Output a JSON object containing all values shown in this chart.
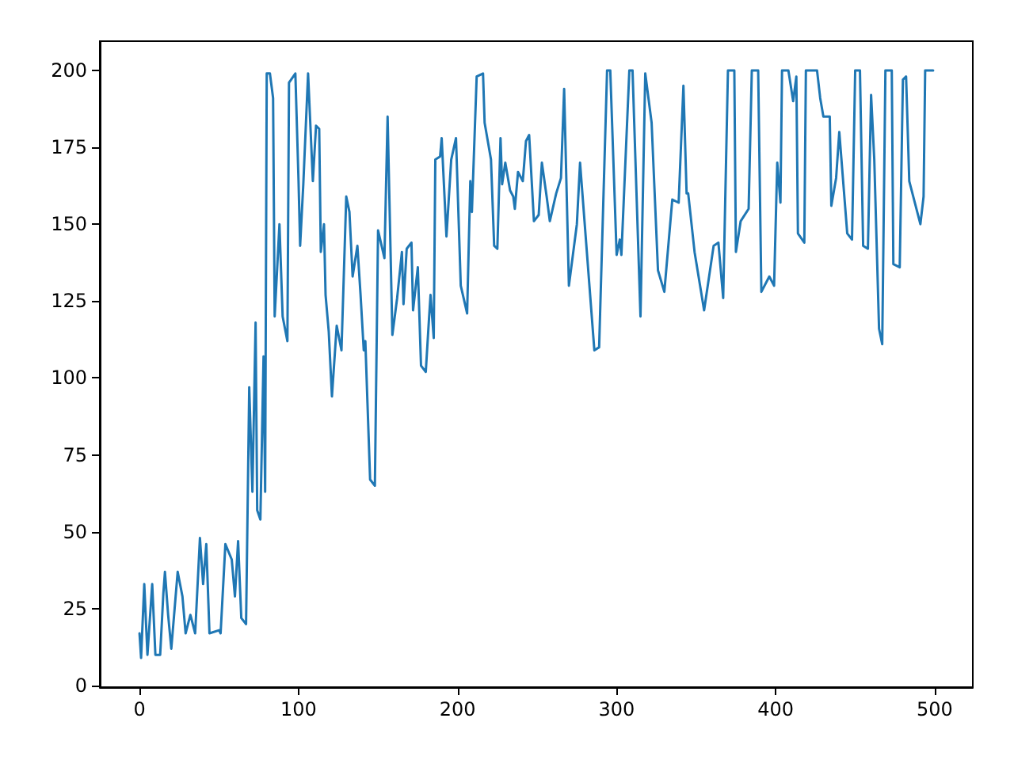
{
  "chart_data": {
    "type": "line",
    "xlim": [
      -24.95,
      523.95
    ],
    "ylim": [
      -0.5,
      209.5
    ],
    "xticks": [
      0,
      100,
      200,
      300,
      400,
      500
    ],
    "yticks": [
      0,
      25,
      50,
      75,
      100,
      125,
      150,
      175,
      200
    ],
    "grid": false,
    "marker": "none",
    "line_style": "solid",
    "series": [
      {
        "color": "#1f77b4",
        "x": [
          0,
          1,
          3,
          5,
          8,
          10,
          13,
          15,
          16,
          18,
          20,
          24,
          27,
          29,
          32,
          35,
          38,
          40,
          42,
          44,
          50,
          51,
          54,
          58,
          60,
          62,
          64,
          67,
          69,
          71,
          73,
          74,
          76,
          78,
          79,
          80,
          82,
          84,
          85,
          88,
          90,
          93,
          94,
          98,
          100,
          101,
          103,
          106,
          109,
          111,
          113,
          114,
          116,
          117,
          119,
          121,
          124,
          127,
          130,
          132,
          134,
          137,
          139,
          141,
          142,
          145,
          148,
          150,
          154,
          156,
          159,
          162,
          165,
          166,
          168,
          171,
          172,
          175,
          177,
          180,
          182,
          183,
          185,
          186,
          189,
          190,
          193,
          196,
          199,
          202,
          206,
          208,
          209,
          212,
          216,
          217,
          221,
          223,
          225,
          227,
          228,
          230,
          233,
          235,
          236,
          238,
          241,
          243,
          245,
          248,
          251,
          253,
          256,
          258,
          262,
          265,
          267,
          270,
          275,
          277,
          286,
          289,
          294,
          296,
          300,
          302,
          303,
          308,
          310,
          315,
          318,
          322,
          326,
          330,
          335,
          339,
          342,
          344,
          345,
          349,
          355,
          361,
          364,
          367,
          370,
          374,
          375,
          378,
          383,
          385,
          389,
          391,
          396,
          399,
          401,
          403,
          404,
          408,
          411,
          413,
          414,
          418,
          419,
          426,
          428,
          430,
          434,
          435,
          438,
          440,
          445,
          448,
          450,
          453,
          455,
          458,
          460,
          462,
          465,
          467,
          469,
          473,
          474,
          478,
          480,
          482,
          484,
          488,
          491,
          493,
          494,
          499
        ],
        "values": [
          17,
          9,
          33,
          10,
          33,
          10,
          10,
          30,
          37,
          23,
          12,
          37,
          29,
          17,
          23,
          17,
          48,
          33,
          46,
          17,
          18,
          17,
          46,
          41,
          29,
          47,
          22,
          20,
          97,
          63,
          118,
          57,
          54,
          107,
          63,
          199,
          199,
          191,
          120,
          150,
          120,
          112,
          196,
          199,
          164,
          143,
          163,
          199,
          164,
          182,
          181,
          141,
          150,
          127,
          115,
          94,
          117,
          109,
          159,
          154,
          133,
          143,
          127,
          109,
          112,
          67,
          65,
          148,
          139,
          185,
          114,
          126,
          141,
          124,
          142,
          144,
          122,
          136,
          104,
          102,
          119,
          127,
          113,
          171,
          172,
          178,
          146,
          171,
          178,
          130,
          121,
          164,
          154,
          198,
          199,
          183,
          171,
          143,
          142,
          178,
          163,
          170,
          161,
          159,
          155,
          167,
          164,
          177,
          179,
          151,
          153,
          170,
          159,
          151,
          160,
          165,
          194,
          130,
          150,
          170,
          109,
          110,
          200,
          200,
          140,
          145,
          140,
          200,
          200,
          120,
          199,
          183,
          135,
          128,
          158,
          157,
          195,
          160,
          160,
          141,
          122,
          143,
          144,
          126,
          200,
          200,
          141,
          151,
          155,
          200,
          200,
          128,
          133,
          130,
          170,
          157,
          200,
          200,
          190,
          198,
          147,
          144,
          200,
          200,
          191,
          185,
          185,
          156,
          165,
          180,
          147,
          145,
          200,
          200,
          143,
          142,
          192,
          171,
          116,
          111,
          200,
          200,
          137,
          136,
          197,
          198,
          164,
          156,
          150,
          159,
          200,
          200
        ]
      }
    ]
  }
}
